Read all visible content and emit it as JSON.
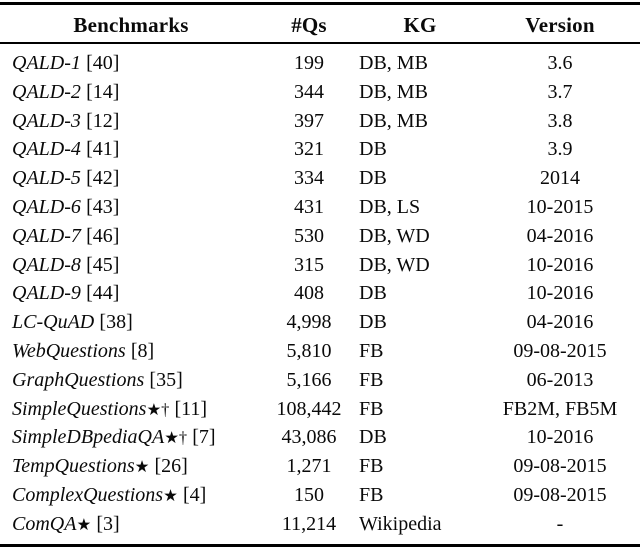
{
  "table": {
    "columns": [
      {
        "label": "Benchmarks"
      },
      {
        "label": "#Qs"
      },
      {
        "label": "KG"
      },
      {
        "label": "Version"
      }
    ],
    "rows": [
      {
        "name": "QALD-1",
        "marker": "",
        "cite": "[40]",
        "qs": "199",
        "kg": "DB, MB",
        "version": "3.6"
      },
      {
        "name": "QALD-2",
        "marker": "",
        "cite": "[14]",
        "qs": "344",
        "kg": "DB, MB",
        "version": "3.7"
      },
      {
        "name": "QALD-3",
        "marker": "",
        "cite": "[12]",
        "qs": "397",
        "kg": "DB, MB",
        "version": "3.8"
      },
      {
        "name": "QALD-4",
        "marker": "",
        "cite": "[41]",
        "qs": "321",
        "kg": "DB",
        "version": "3.9"
      },
      {
        "name": "QALD-5",
        "marker": "",
        "cite": "[42]",
        "qs": "334",
        "kg": "DB",
        "version": "2014"
      },
      {
        "name": "QALD-6",
        "marker": "",
        "cite": "[43]",
        "qs": "431",
        "kg": "DB, LS",
        "version": "10-2015"
      },
      {
        "name": "QALD-7",
        "marker": "",
        "cite": "[46]",
        "qs": "530",
        "kg": "DB, WD",
        "version": "04-2016"
      },
      {
        "name": "QALD-8",
        "marker": "",
        "cite": "[45]",
        "qs": "315",
        "kg": "DB, WD",
        "version": "10-2016"
      },
      {
        "name": "QALD-9",
        "marker": "",
        "cite": "[44]",
        "qs": "408",
        "kg": "DB",
        "version": "10-2016"
      },
      {
        "name": "LC-QuAD",
        "marker": "",
        "cite": "[38]",
        "qs": "4,998",
        "kg": "DB",
        "version": "04-2016"
      },
      {
        "name": "WebQuestions",
        "marker": "",
        "cite": "[8]",
        "qs": "5,810",
        "kg": "FB",
        "version": "09-08-2015"
      },
      {
        "name": "GraphQuestions",
        "marker": "",
        "cite": "[35]",
        "qs": "5,166",
        "kg": "FB",
        "version": "06-2013"
      },
      {
        "name": "SimpleQuestions",
        "marker": "★†",
        "cite": "[11]",
        "qs": "108,442",
        "kg": "FB",
        "version": "FB2M, FB5M"
      },
      {
        "name": "SimpleDBpediaQA",
        "marker": "★†",
        "cite": "[7]",
        "qs": "43,086",
        "kg": "DB",
        "version": "10-2016"
      },
      {
        "name": "TempQuestions",
        "marker": "★",
        "cite": "[26]",
        "qs": "1,271",
        "kg": "FB",
        "version": "09-08-2015"
      },
      {
        "name": "ComplexQuestions",
        "marker": "★",
        "cite": "[4]",
        "qs": "150",
        "kg": "FB",
        "version": "09-08-2015"
      },
      {
        "name": "ComQA",
        "marker": "★",
        "cite": "[3]",
        "qs": "11,214",
        "kg": "Wikipedia",
        "version": "-"
      }
    ],
    "text_color": "#0a0a0a",
    "rule_color": "#000000",
    "background_color": "#ffffff"
  }
}
